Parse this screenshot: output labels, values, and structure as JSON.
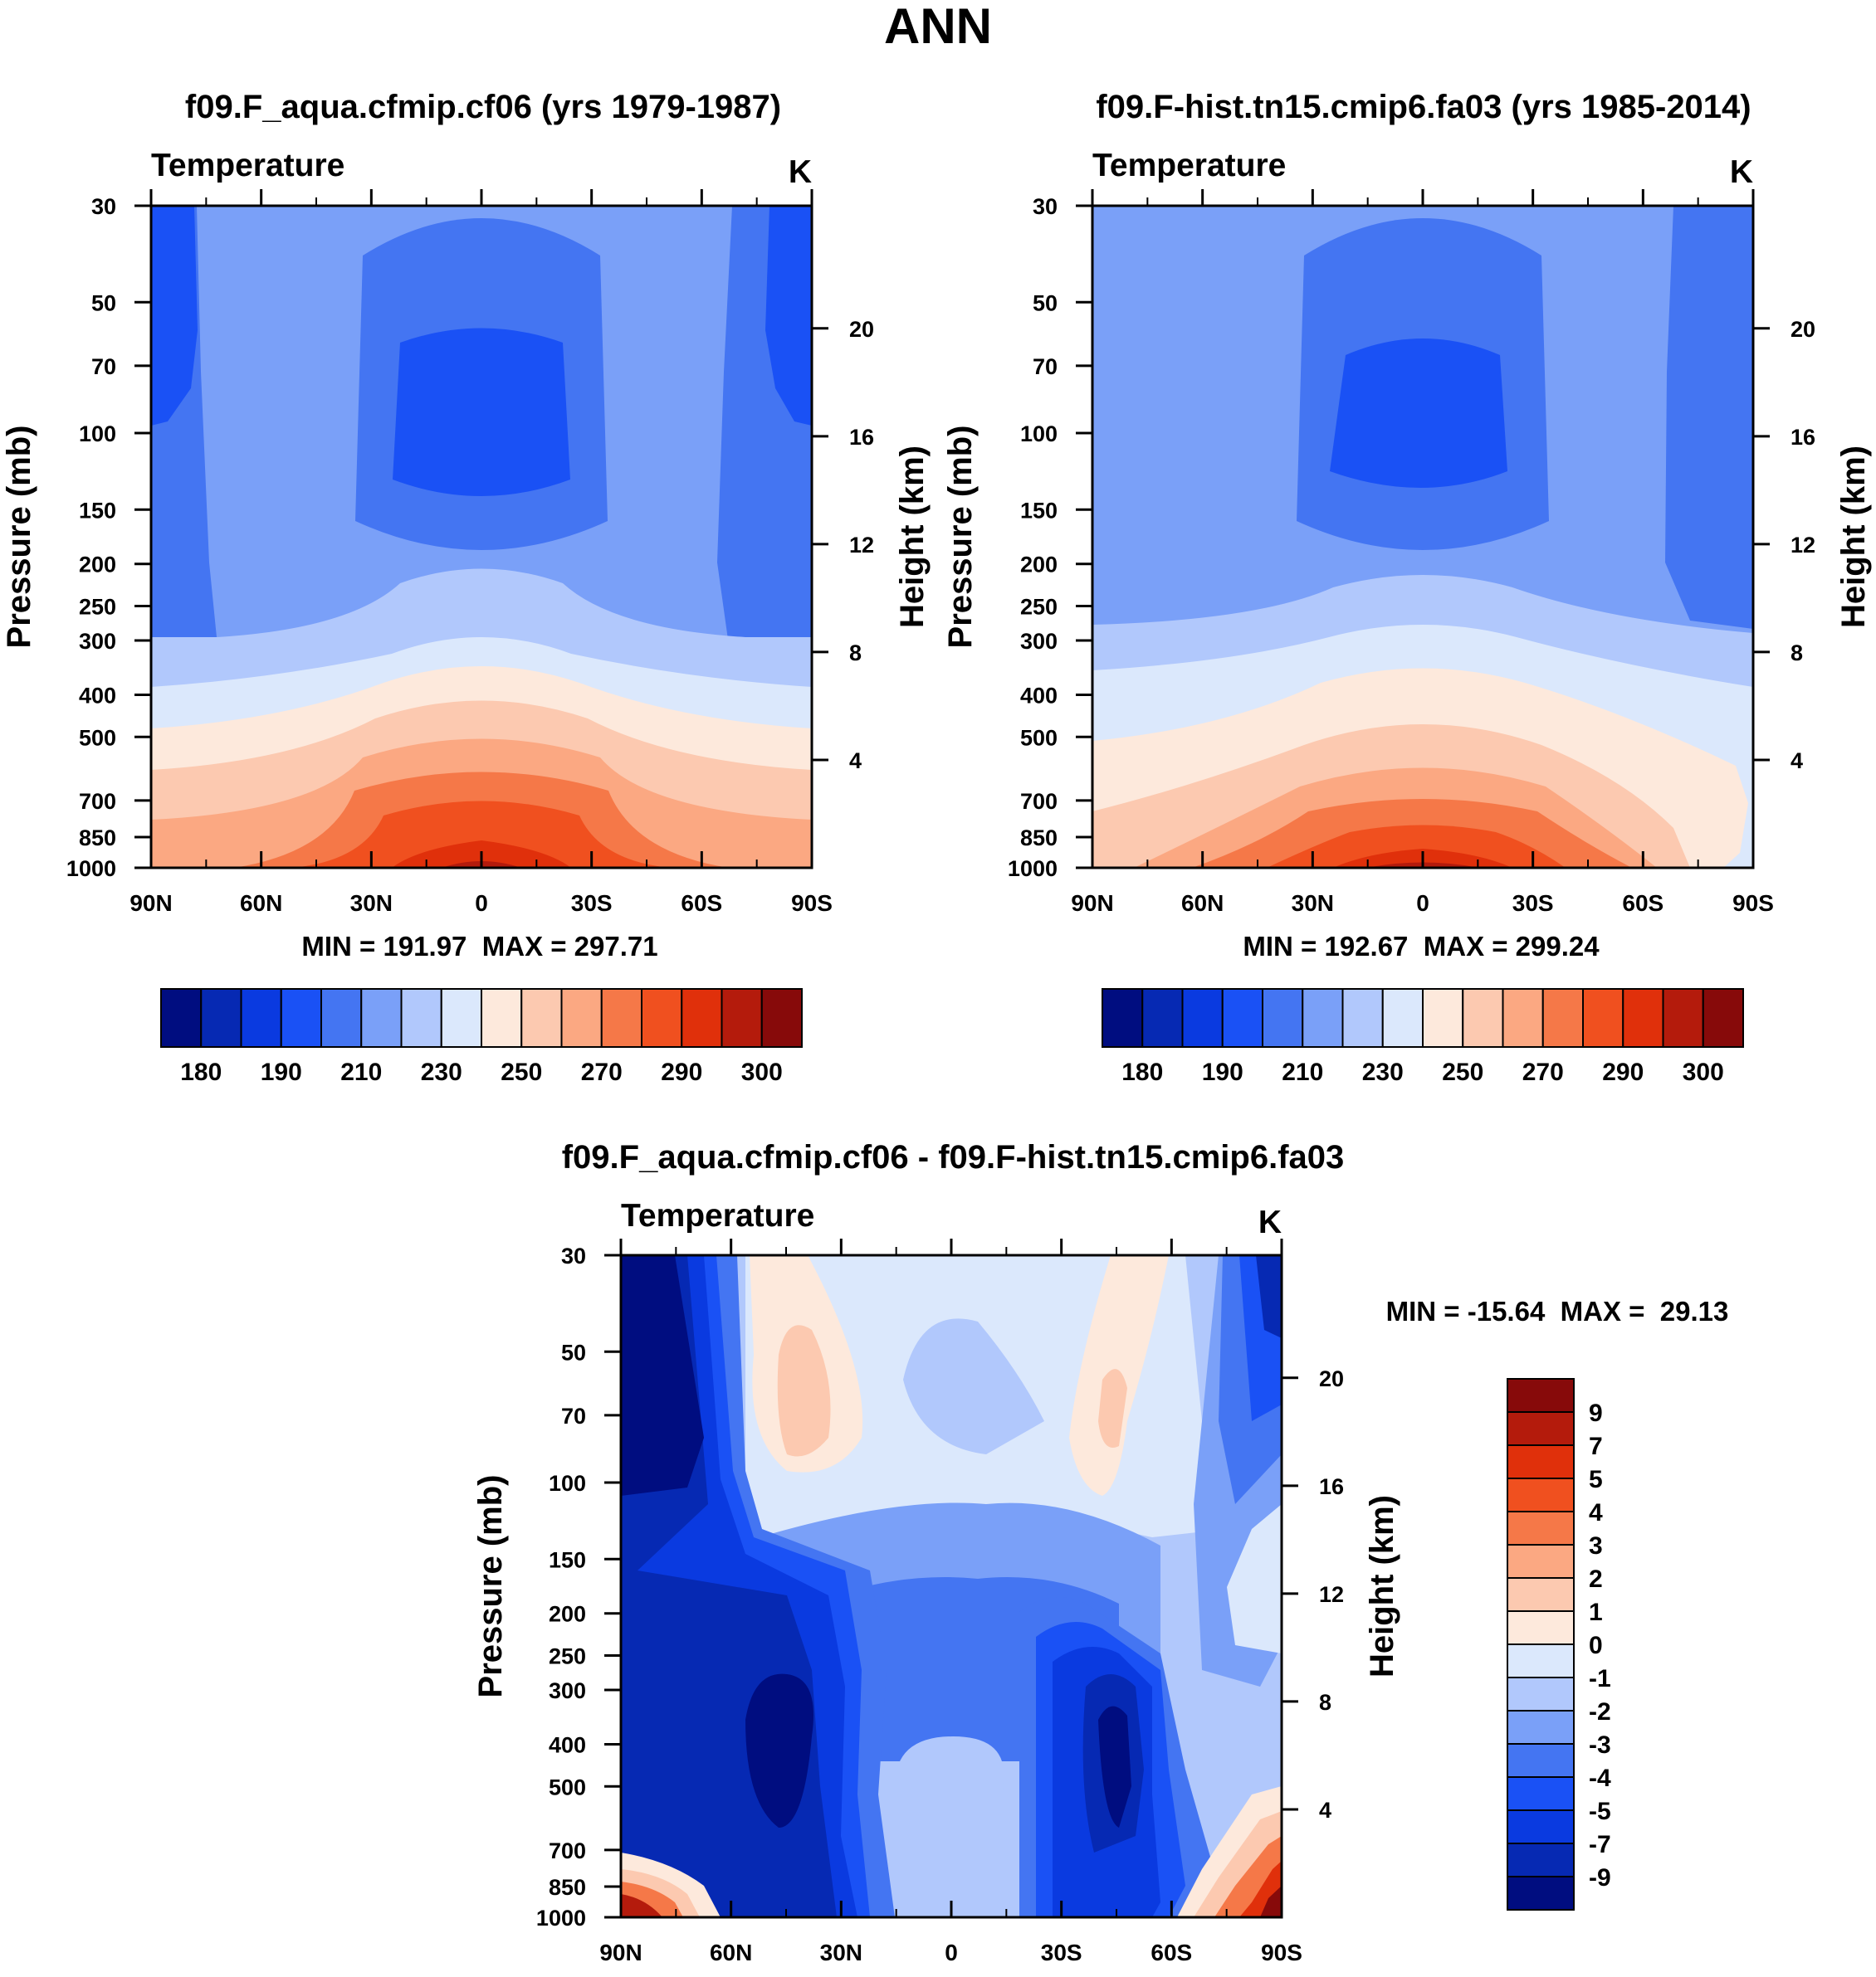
{
  "title": "ANN",
  "colors": {
    "abs_palette": [
      "#000d80",
      "#0629b3",
      "#0a3ae0",
      "#1a51f5",
      "#4475f2",
      "#7aa0f8",
      "#b1c8fc",
      "#dbe8fc",
      "#fde9dc",
      "#fcc9b0",
      "#fba882",
      "#f57848",
      "#f0501f",
      "#e0300b",
      "#b41b0c",
      "#870a0a"
    ],
    "diff_palette": [
      "#000d80",
      "#0629b3",
      "#0a3ae0",
      "#1a51f5",
      "#4475f2",
      "#7aa0f8",
      "#b1c8fc",
      "#dbe8fc",
      "#fde9dc",
      "#fcc9b0",
      "#fba882",
      "#f57848",
      "#f0501f",
      "#e0300b",
      "#b41b0c",
      "#870a0a"
    ]
  },
  "chart_data": [
    {
      "type": "contour",
      "title": "f09.F_aqua.cfmip.cf06 (yrs 1979-1987)",
      "variable": "Temperature",
      "units": "K",
      "ylabel": "Pressure (mb)",
      "ylabel2": "Height (km)",
      "x_ticks": [
        "90N",
        "60N",
        "30N",
        "0",
        "30S",
        "60S",
        "90S"
      ],
      "p_ticks": [
        30,
        50,
        70,
        100,
        150,
        200,
        250,
        300,
        400,
        500,
        700,
        850,
        1000
      ],
      "h_ticks": [
        20,
        16,
        12,
        8,
        4
      ],
      "ylim": [
        1000,
        30
      ],
      "min": 191.97,
      "max": 297.71,
      "stats": "MIN = 191.97  MAX = 297.71",
      "colorbar_labels": [
        "180",
        "190",
        "210",
        "230",
        "250",
        "270",
        "290",
        "300"
      ]
    },
    {
      "type": "contour",
      "title": "f09.F-hist.tn15.cmip6.fa03 (yrs 1985-2014)",
      "variable": "Temperature",
      "units": "K",
      "ylabel": "Pressure (mb)",
      "ylabel2": "Height (km)",
      "x_ticks": [
        "90N",
        "60N",
        "30N",
        "0",
        "30S",
        "60S",
        "90S"
      ],
      "p_ticks": [
        30,
        50,
        70,
        100,
        150,
        200,
        250,
        300,
        400,
        500,
        700,
        850,
        1000
      ],
      "h_ticks": [
        20,
        16,
        12,
        8,
        4
      ],
      "ylim": [
        1000,
        30
      ],
      "min": 192.67,
      "max": 299.24,
      "stats": "MIN = 192.67  MAX = 299.24",
      "colorbar_labels": [
        "180",
        "190",
        "210",
        "230",
        "250",
        "270",
        "290",
        "300"
      ]
    },
    {
      "type": "contour",
      "title": "f09.F_aqua.cfmip.cf06 - f09.F-hist.tn15.cmip6.fa03",
      "variable": "Temperature",
      "units": "K",
      "ylabel": "Pressure (mb)",
      "ylabel2": "Height (km)",
      "x_ticks": [
        "90N",
        "60N",
        "30N",
        "0",
        "30S",
        "60S",
        "90S"
      ],
      "p_ticks": [
        30,
        50,
        70,
        100,
        150,
        200,
        250,
        300,
        400,
        500,
        700,
        850,
        1000
      ],
      "h_ticks": [
        20,
        16,
        12,
        8,
        4
      ],
      "ylim": [
        1000,
        30
      ],
      "min": -15.64,
      "max": 29.13,
      "stats": "MIN = -15.64  MAX =  29.13",
      "colorbar_labels": [
        "9",
        "7",
        "5",
        "4",
        "3",
        "2",
        "1",
        "0",
        "-1",
        "-2",
        "-3",
        "-4",
        "-5",
        "-7",
        "-9"
      ]
    }
  ]
}
